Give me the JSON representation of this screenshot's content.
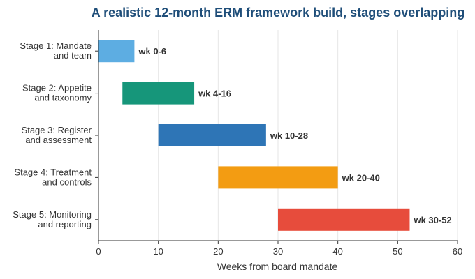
{
  "chart_data": {
    "type": "bar",
    "orientation": "horizontal",
    "title": "A realistic 12-month ERM framework build, stages overlapping",
    "title_color": "#1f4e79",
    "xlabel": "Weeks from board mandate",
    "ylabel": "",
    "xlim": [
      0,
      60
    ],
    "xticks": [
      0,
      10,
      20,
      30,
      40,
      50,
      60
    ],
    "grid": "vertical",
    "stages": [
      {
        "label_line1": "Stage 1: Mandate",
        "label_line2": "and team",
        "start": 0,
        "end": 6,
        "data_label": "wk 0-6",
        "color": "#5dade2"
      },
      {
        "label_line1": "Stage 2: Appetite",
        "label_line2": "and taxonomy",
        "start": 4,
        "end": 16,
        "data_label": "wk 4-16",
        "color": "#16967a"
      },
      {
        "label_line1": "Stage 3: Register",
        "label_line2": "and assessment",
        "start": 10,
        "end": 28,
        "data_label": "wk 10-28",
        "color": "#2e75b6"
      },
      {
        "label_line1": "Stage 4: Treatment",
        "label_line2": "and controls",
        "start": 20,
        "end": 40,
        "data_label": "wk 20-40",
        "color": "#f39c12"
      },
      {
        "label_line1": "Stage 5: Monitoring",
        "label_line2": "and reporting",
        "start": 30,
        "end": 52,
        "data_label": "wk 30-52",
        "color": "#e74c3c"
      }
    ]
  }
}
